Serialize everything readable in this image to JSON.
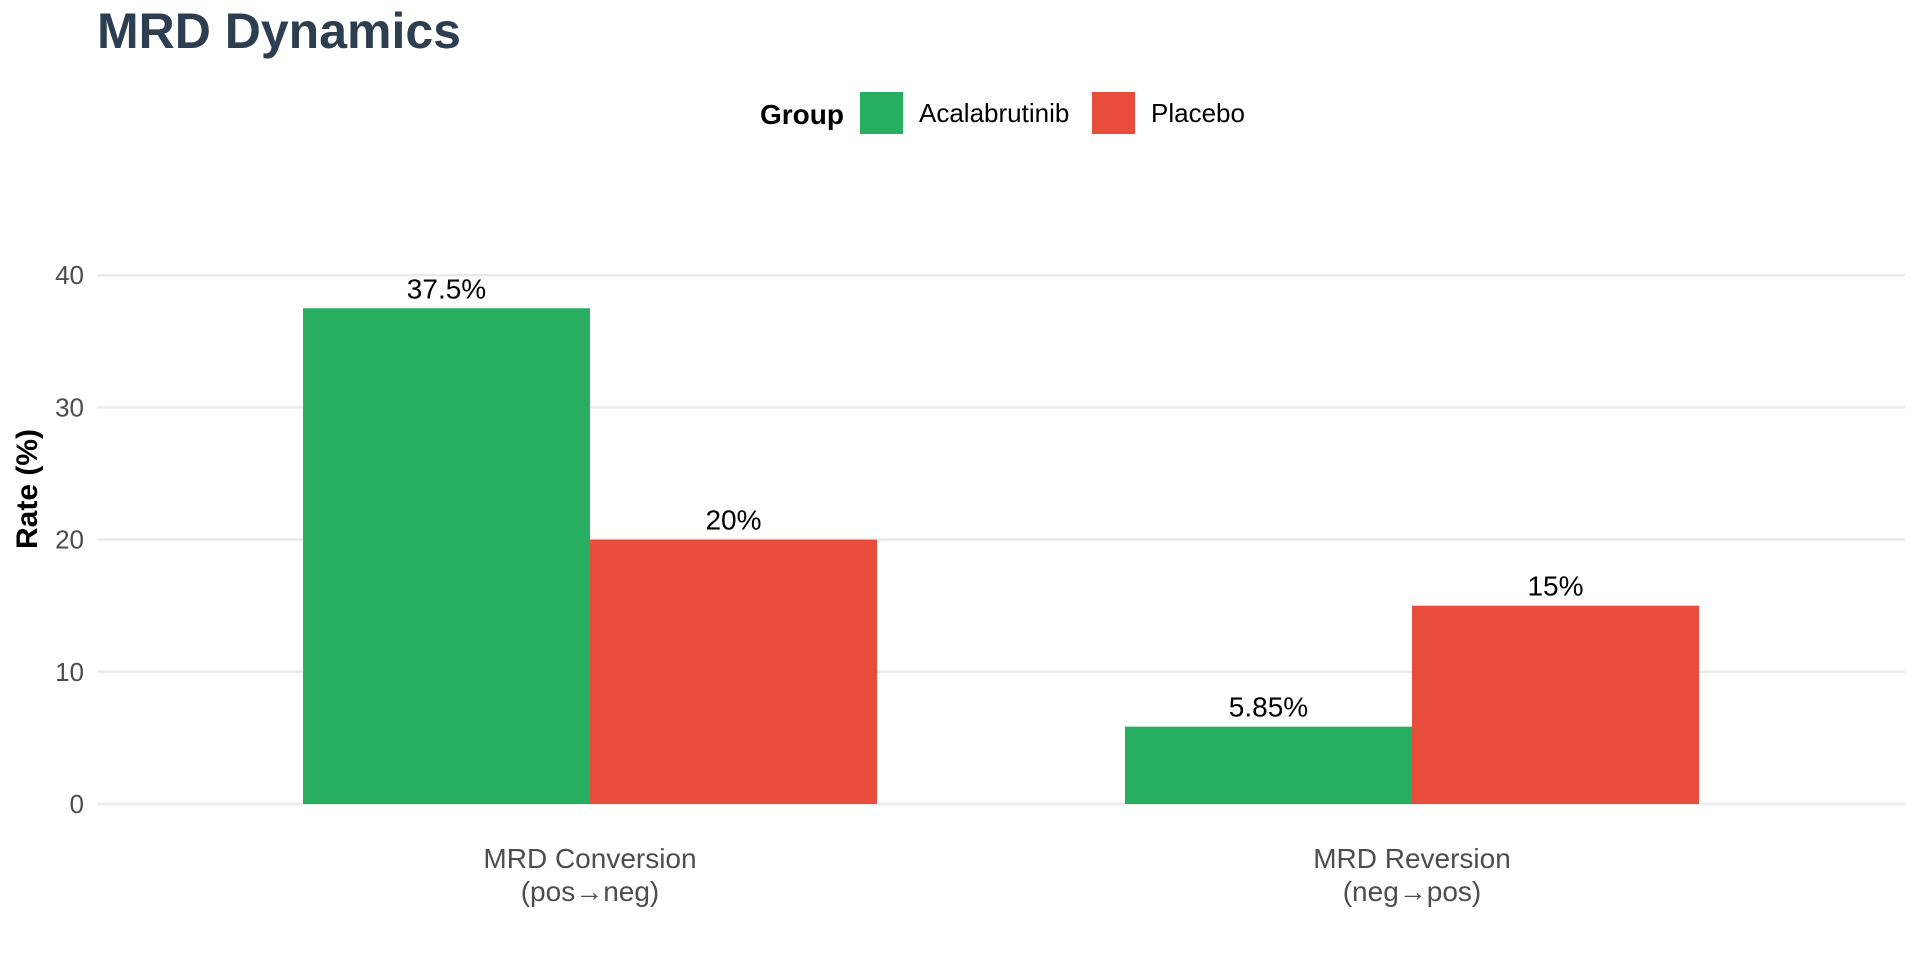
{
  "chart_data": {
    "type": "bar",
    "title": "MRD Dynamics",
    "title_color": "#2c3e50",
    "legend_title": "Group",
    "legend_position": "top",
    "xlabel": "",
    "ylabel": "Rate (%)",
    "ylim": [
      0,
      42
    ],
    "yticks": [
      0,
      10,
      20,
      30,
      40
    ],
    "grid": true,
    "categories": [
      {
        "line1": "MRD Conversion",
        "line2": "(pos→neg)"
      },
      {
        "line1": "MRD Reversion",
        "line2": "(neg→pos)"
      }
    ],
    "series": [
      {
        "name": "Acalabrutinib",
        "color": "#27ae60",
        "values": [
          37.5,
          5.85
        ],
        "labels": [
          "37.5%",
          "5.85%"
        ]
      },
      {
        "name": "Placebo",
        "color": "#e74c3c",
        "values": [
          20,
          15
        ],
        "labels": [
          "20%",
          "15%"
        ]
      }
    ]
  }
}
